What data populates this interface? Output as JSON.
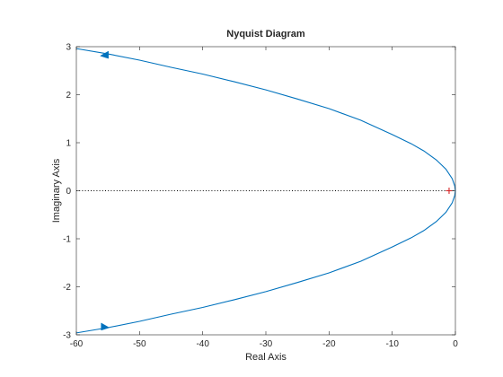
{
  "chart_data": {
    "type": "line",
    "title": "Nyquist Diagram",
    "xlabel": "Real Axis",
    "ylabel": "Imaginary Axis",
    "xlim": [
      -60,
      0
    ],
    "ylim": [
      -3,
      3
    ],
    "xticks": [
      -60,
      -50,
      -40,
      -30,
      -20,
      -10,
      0
    ],
    "yticks": [
      -3,
      -2,
      -1,
      0,
      1,
      2,
      3
    ],
    "grid": false,
    "series": [
      {
        "color": "#0072bd",
        "x": [
          -60,
          -55,
          -50,
          -45,
          -40,
          -35,
          -30,
          -25,
          -20,
          -15,
          -10,
          -7,
          -5,
          -3,
          -1.5,
          -0.5,
          -0.1,
          0,
          -0.1,
          -0.5,
          -1.5,
          -3,
          -5,
          -7,
          -10,
          -15,
          -20,
          -25,
          -30,
          -35,
          -40,
          -45,
          -50,
          -55,
          -60
        ],
        "y": [
          2.96,
          2.85,
          2.72,
          2.57,
          2.43,
          2.27,
          2.1,
          1.91,
          1.71,
          1.47,
          1.17,
          0.98,
          0.83,
          0.64,
          0.45,
          0.25,
          0.1,
          0,
          -0.1,
          -0.25,
          -0.45,
          -0.64,
          -0.83,
          -0.98,
          -1.17,
          -1.47,
          -1.71,
          -1.91,
          -2.1,
          -2.27,
          -2.43,
          -2.57,
          -2.72,
          -2.85,
          -2.96
        ]
      }
    ],
    "direction_arrows": [
      {
        "x": -55.5,
        "y": 2.83,
        "heading": "left"
      },
      {
        "x": -55.5,
        "y": -2.83,
        "heading": "right"
      }
    ],
    "reference_line": {
      "y": 0,
      "style": "dotted",
      "color": "#000000"
    },
    "critical_point": {
      "x": -1,
      "y": 0,
      "marker": "+",
      "color": "#d62728"
    }
  }
}
